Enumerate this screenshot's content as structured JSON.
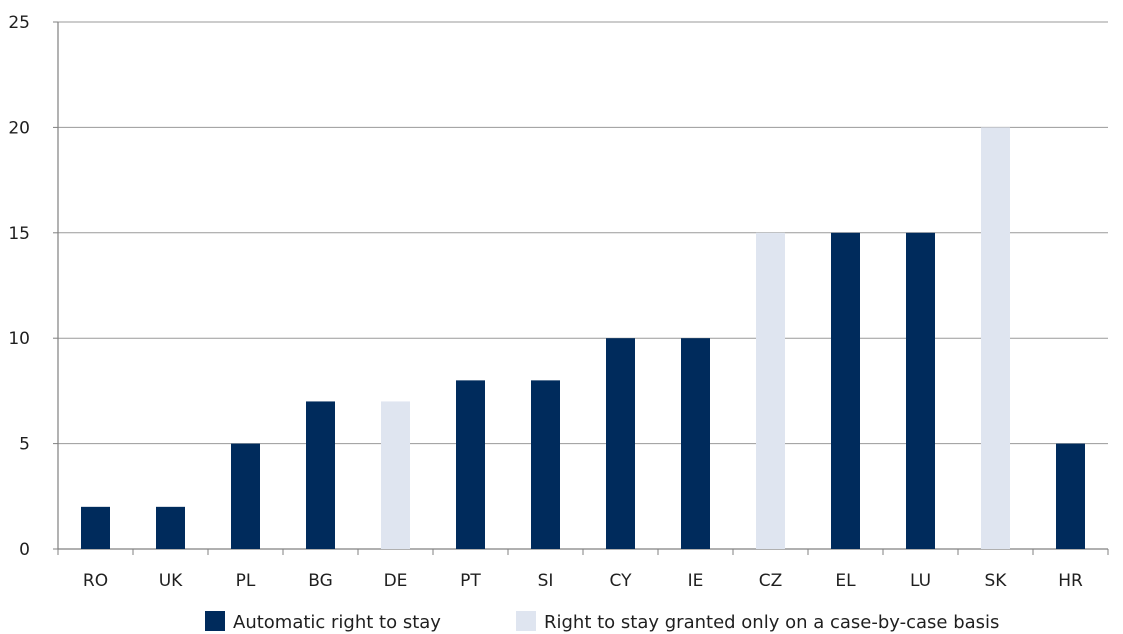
{
  "chart_data": {
    "type": "bar",
    "categories": [
      "RO",
      "UK",
      "PL",
      "BG",
      "DE",
      "PT",
      "SI",
      "CY",
      "IE",
      "CZ",
      "EL",
      "LU",
      "SK",
      "HR"
    ],
    "values": [
      2,
      2,
      5,
      7,
      7,
      8,
      8,
      10,
      10,
      15,
      15,
      15,
      20,
      5
    ],
    "bar_series": [
      "automatic",
      "automatic",
      "automatic",
      "automatic",
      "case_by_case",
      "automatic",
      "automatic",
      "automatic",
      "automatic",
      "case_by_case",
      "automatic",
      "automatic",
      "case_by_case",
      "automatic"
    ],
    "series": [
      {
        "key": "automatic",
        "name": "Automatic right to stay",
        "color": "#002b5c"
      },
      {
        "key": "case_by_case",
        "name": "Right to stay granted only on a case-by-case basis",
        "color": "#dfe5f0"
      }
    ],
    "ylim": [
      0,
      25
    ],
    "yticks": [
      0,
      5,
      10,
      15,
      20,
      25
    ],
    "grid": true,
    "legend_position": "bottom",
    "title": "",
    "xlabel": "",
    "ylabel": ""
  }
}
